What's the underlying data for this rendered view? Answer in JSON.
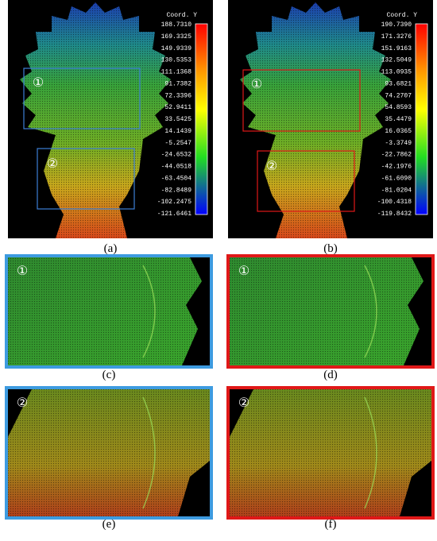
{
  "panels": [
    {
      "caption": "(a)",
      "colorbar_title": "Coord. Y",
      "colorbar_labels": [
        "188.7310",
        "169.3325",
        "149.9339",
        "130.5353",
        "111.1368",
        "91.7382",
        "72.3396",
        "52.9411",
        "33.5425",
        "14.1439",
        "-5.2547",
        "-24.6532",
        "-44.0518",
        "-63.4504",
        "-82.8489",
        "-102.2475",
        "-121.6461"
      ],
      "markers": [
        "①",
        "②"
      ]
    },
    {
      "caption": "(b)",
      "colorbar_title": "Coord. Y",
      "colorbar_labels": [
        "190.7390",
        "171.3276",
        "151.9163",
        "132.5049",
        "113.0935",
        "93.6821",
        "74.2707",
        "54.8593",
        "35.4479",
        "16.0365",
        "-3.3749",
        "-22.7862",
        "-42.1976",
        "-61.6090",
        "-81.0204",
        "-100.4318",
        "-119.8432"
      ],
      "markers": [
        "①",
        "②"
      ]
    },
    {
      "caption": "(c)",
      "marker": "①"
    },
    {
      "caption": "(d)",
      "marker": "①"
    },
    {
      "caption": "(e)",
      "marker": "②"
    },
    {
      "caption": "(f)",
      "marker": "②"
    }
  ]
}
